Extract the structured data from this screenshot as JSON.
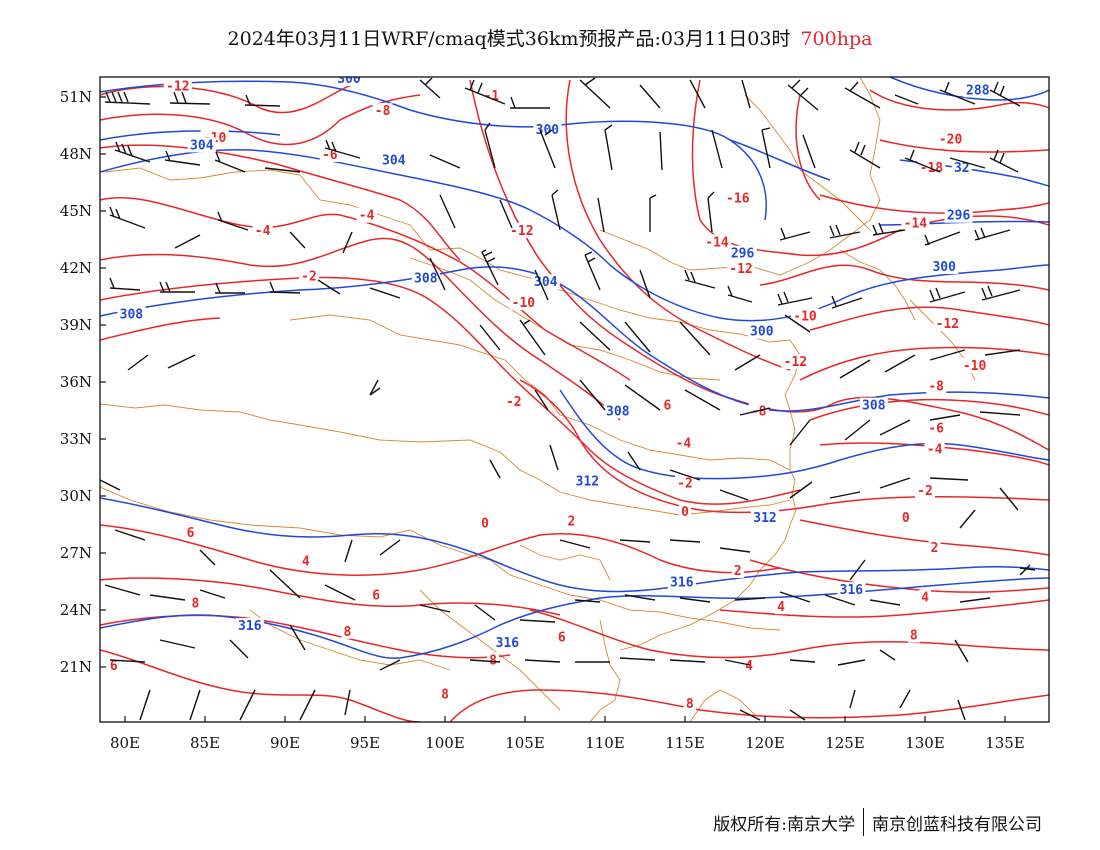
{
  "header": {
    "title": "2024年03月11日WRF/cmaq模式36km预报产品:03月11日03时",
    "level": "700hpa"
  },
  "footer": {
    "owner": "版权所有:南京大学",
    "company": "南京创蓝科技有限公司"
  },
  "colors": {
    "temperature": "#e8262a",
    "height": "#2049d8",
    "boundary": "#d88a30",
    "barb": "#111111"
  },
  "map": {
    "lon_range": [
      78,
      138
    ],
    "lat_range": [
      18,
      52
    ],
    "x_ticks": [
      {
        "lon": 80,
        "label": "80E"
      },
      {
        "lon": 85,
        "label": "85E"
      },
      {
        "lon": 90,
        "label": "90E"
      },
      {
        "lon": 95,
        "label": "95E"
      },
      {
        "lon": 100,
        "label": "100E"
      },
      {
        "lon": 105,
        "label": "105E"
      },
      {
        "lon": 110,
        "label": "110E"
      },
      {
        "lon": 115,
        "label": "115E"
      },
      {
        "lon": 120,
        "label": "120E"
      },
      {
        "lon": 125,
        "label": "125E"
      },
      {
        "lon": 130,
        "label": "130E"
      },
      {
        "lon": 135,
        "label": "135E"
      }
    ],
    "y_ticks": [
      {
        "lat": 51,
        "label": "51N"
      },
      {
        "lat": 48,
        "label": "48N"
      },
      {
        "lat": 45,
        "label": "45N"
      },
      {
        "lat": 42,
        "label": "42N"
      },
      {
        "lat": 39,
        "label": "39N"
      },
      {
        "lat": 36,
        "label": "36N"
      },
      {
        "lat": 33,
        "label": "33N"
      },
      {
        "lat": 30,
        "label": "30N"
      },
      {
        "lat": 27,
        "label": "27N"
      },
      {
        "lat": 24,
        "label": "24N"
      },
      {
        "lat": 21,
        "label": "21N"
      }
    ],
    "temperature_labels": [
      {
        "lon": 83.3,
        "lat": 51.5,
        "text": "-12"
      },
      {
        "lon": 96.1,
        "lat": 50.2,
        "text": "-8"
      },
      {
        "lon": 92.8,
        "lat": 47.9,
        "text": "-6"
      },
      {
        "lon": 85.6,
        "lat": 48.8,
        "text": "-10"
      },
      {
        "lon": 102.9,
        "lat": 51.0,
        "text": "-1"
      },
      {
        "lon": 95.1,
        "lat": 44.7,
        "text": "-4"
      },
      {
        "lon": 88.6,
        "lat": 43.9,
        "text": "-4"
      },
      {
        "lon": 91.5,
        "lat": 41.5,
        "text": "-2"
      },
      {
        "lon": 104.8,
        "lat": 43.9,
        "text": "-12"
      },
      {
        "lon": 104.9,
        "lat": 40.1,
        "text": "-10"
      },
      {
        "lon": 117.0,
        "lat": 43.3,
        "text": "-14"
      },
      {
        "lon": 118.3,
        "lat": 45.6,
        "text": "-16"
      },
      {
        "lon": 118.5,
        "lat": 41.9,
        "text": "-12"
      },
      {
        "lon": 131.6,
        "lat": 48.7,
        "text": "-20"
      },
      {
        "lon": 130.4,
        "lat": 47.2,
        "text": "-18"
      },
      {
        "lon": 129.4,
        "lat": 44.3,
        "text": "-14"
      },
      {
        "lon": 122.5,
        "lat": 39.4,
        "text": "-10"
      },
      {
        "lon": 121.9,
        "lat": 37.0,
        "text": "-12"
      },
      {
        "lon": 131.4,
        "lat": 39.0,
        "text": "-12"
      },
      {
        "lon": 133.1,
        "lat": 36.8,
        "text": "-10"
      },
      {
        "lon": 130.7,
        "lat": 35.7,
        "text": "-8"
      },
      {
        "lon": 130.7,
        "lat": 33.5,
        "text": "-6"
      },
      {
        "lon": 130.6,
        "lat": 32.4,
        "text": "-4"
      },
      {
        "lon": 130.0,
        "lat": 30.2,
        "text": "-2"
      },
      {
        "lon": 128.8,
        "lat": 28.8,
        "text": "0"
      },
      {
        "lon": 130.6,
        "lat": 27.2,
        "text": "2"
      },
      {
        "lon": 130.0,
        "lat": 24.6,
        "text": "4"
      },
      {
        "lon": 129.3,
        "lat": 22.6,
        "text": "8"
      },
      {
        "lon": 119.6,
        "lat": 34.4,
        "text": "-8"
      },
      {
        "lon": 113.9,
        "lat": 34.7,
        "text": "6"
      },
      {
        "lon": 114.9,
        "lat": 32.7,
        "text": "-4"
      },
      {
        "lon": 115.0,
        "lat": 30.6,
        "text": "-2"
      },
      {
        "lon": 115.0,
        "lat": 29.1,
        "text": "0"
      },
      {
        "lon": 104.3,
        "lat": 34.9,
        "text": "-2"
      },
      {
        "lon": 102.5,
        "lat": 28.5,
        "text": "0"
      },
      {
        "lon": 107.9,
        "lat": 28.6,
        "text": "2"
      },
      {
        "lon": 118.3,
        "lat": 26.0,
        "text": "2"
      },
      {
        "lon": 84.1,
        "lat": 28.0,
        "text": "6"
      },
      {
        "lon": 91.3,
        "lat": 26.5,
        "text": "4"
      },
      {
        "lon": 95.7,
        "lat": 24.7,
        "text": "6"
      },
      {
        "lon": 84.4,
        "lat": 24.3,
        "text": "8"
      },
      {
        "lon": 93.9,
        "lat": 22.8,
        "text": "8"
      },
      {
        "lon": 107.3,
        "lat": 22.5,
        "text": "6"
      },
      {
        "lon": 103.0,
        "lat": 21.3,
        "text": "8"
      },
      {
        "lon": 100.0,
        "lat": 19.5,
        "text": "8"
      },
      {
        "lon": 121.0,
        "lat": 24.1,
        "text": "4"
      },
      {
        "lon": 119.0,
        "lat": 21.0,
        "text": "4"
      },
      {
        "lon": 115.3,
        "lat": 19.0,
        "text": "8"
      },
      {
        "lon": 79.3,
        "lat": 21.0,
        "text": "6"
      }
    ],
    "height_labels": [
      {
        "lon": 94.0,
        "lat": 51.9,
        "text": "300"
      },
      {
        "lon": 106.4,
        "lat": 49.2,
        "text": "300"
      },
      {
        "lon": 84.8,
        "lat": 48.4,
        "text": "304"
      },
      {
        "lon": 96.8,
        "lat": 47.6,
        "text": "304"
      },
      {
        "lon": 132.3,
        "lat": 47.2,
        "text": "32"
      },
      {
        "lon": 133.3,
        "lat": 51.3,
        "text": "288"
      },
      {
        "lon": 132.1,
        "lat": 44.7,
        "text": "296"
      },
      {
        "lon": 131.2,
        "lat": 42.0,
        "text": "300"
      },
      {
        "lon": 118.6,
        "lat": 42.7,
        "text": "296"
      },
      {
        "lon": 119.8,
        "lat": 38.6,
        "text": "300"
      },
      {
        "lon": 106.3,
        "lat": 41.2,
        "text": "304"
      },
      {
        "lon": 98.8,
        "lat": 41.4,
        "text": "308"
      },
      {
        "lon": 80.4,
        "lat": 39.5,
        "text": "308"
      },
      {
        "lon": 110.8,
        "lat": 34.4,
        "text": "308"
      },
      {
        "lon": 126.8,
        "lat": 34.7,
        "text": "308"
      },
      {
        "lon": 108.9,
        "lat": 30.7,
        "text": "312"
      },
      {
        "lon": 120.0,
        "lat": 28.8,
        "text": "312"
      },
      {
        "lon": 114.8,
        "lat": 25.4,
        "text": "316"
      },
      {
        "lon": 125.4,
        "lat": 25.0,
        "text": "316"
      },
      {
        "lon": 87.8,
        "lat": 23.1,
        "text": "316"
      },
      {
        "lon": 103.9,
        "lat": 22.2,
        "text": "316"
      }
    ]
  }
}
